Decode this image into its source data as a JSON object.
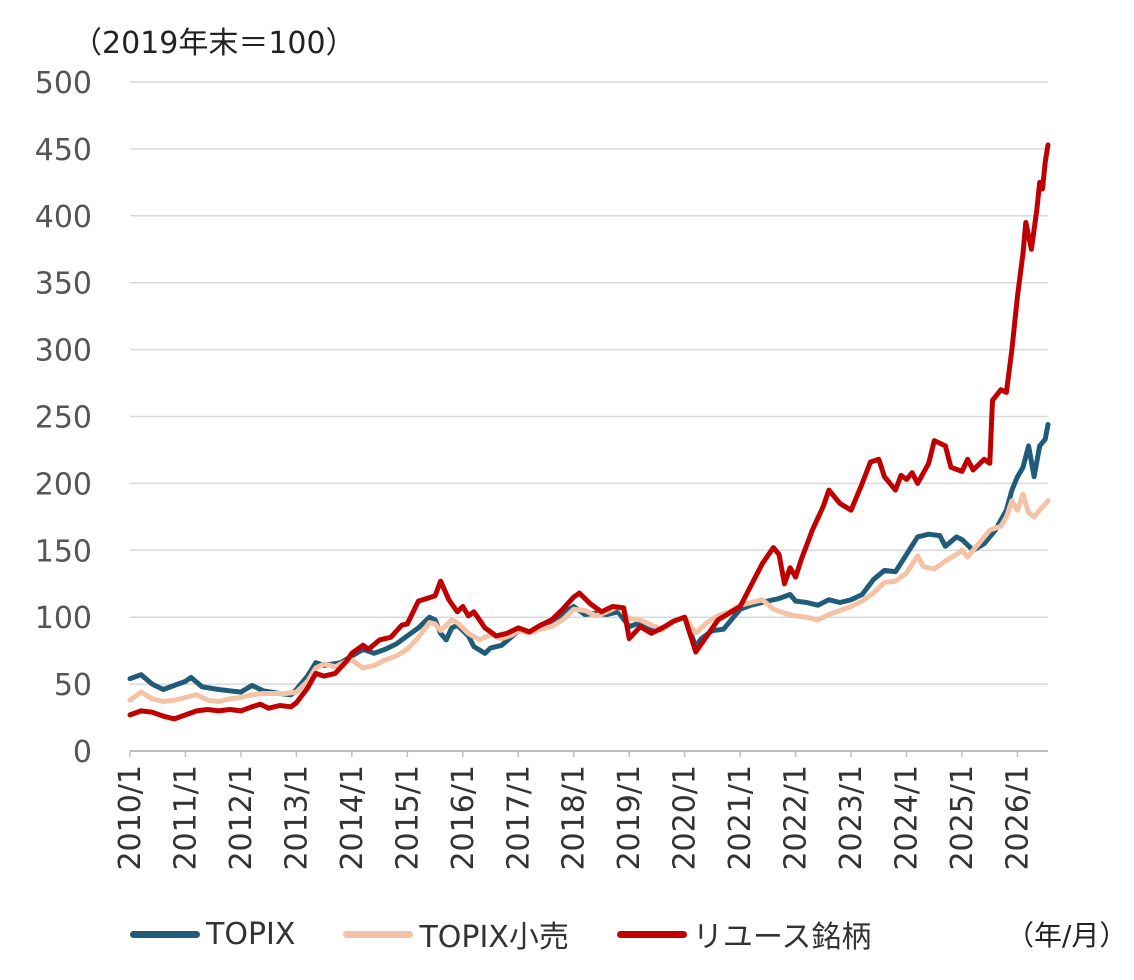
{
  "chart_data": {
    "type": "line",
    "title": "",
    "unit_label": "（2019年末＝100）",
    "xlabel": "",
    "ylabel": "",
    "x_unit": "（年/月）",
    "ylim": [
      0,
      500
    ],
    "yticks": [
      0,
      50,
      100,
      150,
      200,
      250,
      300,
      350,
      400,
      450,
      500
    ],
    "x_tick_labels": [
      "2010/1",
      "2011/1",
      "2012/1",
      "2013/1",
      "2014/1",
      "2015/1",
      "2016/1",
      "2017/1",
      "2018/1",
      "2019/1",
      "2020/1",
      "2021/1",
      "2022/1",
      "2023/1",
      "2024/1",
      "2025/1",
      "2026/1"
    ],
    "x_range": [
      2010.0,
      2026.55
    ],
    "grid": true,
    "legend_position": "bottom",
    "series": [
      {
        "name": "TOPIX",
        "color": "#1F5C7A",
        "points": [
          [
            2010.0,
            54
          ],
          [
            2010.2,
            57
          ],
          [
            2010.4,
            50
          ],
          [
            2010.6,
            46
          ],
          [
            2010.8,
            49
          ],
          [
            2011.0,
            52
          ],
          [
            2011.1,
            55
          ],
          [
            2011.3,
            48
          ],
          [
            2011.6,
            46
          ],
          [
            2011.8,
            45
          ],
          [
            2012.0,
            44
          ],
          [
            2012.2,
            49
          ],
          [
            2012.4,
            45
          ],
          [
            2012.7,
            43
          ],
          [
            2012.9,
            42
          ],
          [
            2013.0,
            46
          ],
          [
            2013.2,
            56
          ],
          [
            2013.35,
            66
          ],
          [
            2013.5,
            64
          ],
          [
            2013.8,
            66
          ],
          [
            2014.0,
            71
          ],
          [
            2014.2,
            76
          ],
          [
            2014.4,
            73
          ],
          [
            2014.6,
            76
          ],
          [
            2014.8,
            80
          ],
          [
            2015.0,
            86
          ],
          [
            2015.2,
            92
          ],
          [
            2015.4,
            100
          ],
          [
            2015.5,
            98
          ],
          [
            2015.6,
            88
          ],
          [
            2015.7,
            83
          ],
          [
            2015.8,
            92
          ],
          [
            2015.9,
            94
          ],
          [
            2016.1,
            86
          ],
          [
            2016.2,
            78
          ],
          [
            2016.4,
            73
          ],
          [
            2016.5,
            77
          ],
          [
            2016.7,
            79
          ],
          [
            2016.9,
            86
          ],
          [
            2017.0,
            90
          ],
          [
            2017.2,
            89
          ],
          [
            2017.4,
            93
          ],
          [
            2017.6,
            94
          ],
          [
            2017.8,
            103
          ],
          [
            2018.0,
            108
          ],
          [
            2018.2,
            102
          ],
          [
            2018.4,
            103
          ],
          [
            2018.6,
            102
          ],
          [
            2018.8,
            104
          ],
          [
            2019.0,
            93
          ],
          [
            2019.2,
            96
          ],
          [
            2019.4,
            90
          ],
          [
            2019.6,
            91
          ],
          [
            2019.8,
            97
          ],
          [
            2020.0,
            100
          ],
          [
            2020.2,
            78
          ],
          [
            2020.3,
            84
          ],
          [
            2020.5,
            90
          ],
          [
            2020.7,
            91
          ],
          [
            2020.9,
            101
          ],
          [
            2021.0,
            106
          ],
          [
            2021.2,
            109
          ],
          [
            2021.5,
            112
          ],
          [
            2021.7,
            114
          ],
          [
            2021.9,
            117
          ],
          [
            2022.0,
            112
          ],
          [
            2022.2,
            111
          ],
          [
            2022.4,
            109
          ],
          [
            2022.6,
            113
          ],
          [
            2022.8,
            111
          ],
          [
            2023.0,
            113
          ],
          [
            2023.2,
            117
          ],
          [
            2023.4,
            128
          ],
          [
            2023.6,
            135
          ],
          [
            2023.8,
            134
          ],
          [
            2024.0,
            147
          ],
          [
            2024.2,
            160
          ],
          [
            2024.4,
            162
          ],
          [
            2024.6,
            161
          ],
          [
            2024.7,
            153
          ],
          [
            2024.9,
            160
          ],
          [
            2025.0,
            158
          ],
          [
            2025.2,
            150
          ],
          [
            2025.4,
            155
          ],
          [
            2025.6,
            165
          ],
          [
            2025.8,
            180
          ],
          [
            2025.9,
            195
          ],
          [
            2026.0,
            205
          ],
          [
            2026.1,
            212
          ],
          [
            2026.2,
            228
          ],
          [
            2026.3,
            205
          ],
          [
            2026.4,
            228
          ],
          [
            2026.5,
            233
          ],
          [
            2026.55,
            244
          ]
        ]
      },
      {
        "name": "TOPIX小売",
        "color": "#F4C3A6",
        "points": [
          [
            2010.0,
            38
          ],
          [
            2010.2,
            44
          ],
          [
            2010.4,
            39
          ],
          [
            2010.6,
            37
          ],
          [
            2010.8,
            38
          ],
          [
            2011.0,
            40
          ],
          [
            2011.2,
            42
          ],
          [
            2011.4,
            38
          ],
          [
            2011.6,
            37
          ],
          [
            2011.8,
            39
          ],
          [
            2012.0,
            40
          ],
          [
            2012.2,
            42
          ],
          [
            2012.4,
            43
          ],
          [
            2012.6,
            43
          ],
          [
            2012.8,
            43
          ],
          [
            2013.0,
            44
          ],
          [
            2013.2,
            52
          ],
          [
            2013.35,
            62
          ],
          [
            2013.5,
            65
          ],
          [
            2013.7,
            63
          ],
          [
            2013.9,
            67
          ],
          [
            2014.0,
            68
          ],
          [
            2014.2,
            62
          ],
          [
            2014.4,
            64
          ],
          [
            2014.6,
            68
          ],
          [
            2014.8,
            71
          ],
          [
            2015.0,
            76
          ],
          [
            2015.2,
            85
          ],
          [
            2015.4,
            96
          ],
          [
            2015.5,
            95
          ],
          [
            2015.6,
            90
          ],
          [
            2015.8,
            98
          ],
          [
            2015.9,
            96
          ],
          [
            2016.1,
            88
          ],
          [
            2016.3,
            83
          ],
          [
            2016.5,
            87
          ],
          [
            2016.7,
            84
          ],
          [
            2016.9,
            87
          ],
          [
            2017.0,
            90
          ],
          [
            2017.2,
            88
          ],
          [
            2017.4,
            91
          ],
          [
            2017.6,
            93
          ],
          [
            2017.8,
            98
          ],
          [
            2018.0,
            106
          ],
          [
            2018.2,
            105
          ],
          [
            2018.4,
            101
          ],
          [
            2018.6,
            104
          ],
          [
            2018.8,
            108
          ],
          [
            2019.0,
            99
          ],
          [
            2019.2,
            98
          ],
          [
            2019.4,
            94
          ],
          [
            2019.6,
            91
          ],
          [
            2019.8,
            97
          ],
          [
            2020.0,
            100
          ],
          [
            2020.2,
            88
          ],
          [
            2020.4,
            96
          ],
          [
            2020.6,
            101
          ],
          [
            2020.8,
            104
          ],
          [
            2021.0,
            109
          ],
          [
            2021.2,
            111
          ],
          [
            2021.4,
            113
          ],
          [
            2021.6,
            106
          ],
          [
            2021.8,
            103
          ],
          [
            2022.0,
            101
          ],
          [
            2022.2,
            100
          ],
          [
            2022.4,
            98
          ],
          [
            2022.6,
            102
          ],
          [
            2022.8,
            105
          ],
          [
            2023.0,
            108
          ],
          [
            2023.2,
            112
          ],
          [
            2023.4,
            118
          ],
          [
            2023.6,
            126
          ],
          [
            2023.8,
            127
          ],
          [
            2024.0,
            133
          ],
          [
            2024.2,
            146
          ],
          [
            2024.3,
            138
          ],
          [
            2024.5,
            136
          ],
          [
            2024.7,
            142
          ],
          [
            2024.9,
            147
          ],
          [
            2025.0,
            150
          ],
          [
            2025.1,
            145
          ],
          [
            2025.3,
            155
          ],
          [
            2025.5,
            165
          ],
          [
            2025.7,
            168
          ],
          [
            2025.8,
            175
          ],
          [
            2025.9,
            187
          ],
          [
            2026.0,
            180
          ],
          [
            2026.1,
            192
          ],
          [
            2026.2,
            178
          ],
          [
            2026.3,
            175
          ],
          [
            2026.4,
            180
          ],
          [
            2026.55,
            187
          ]
        ]
      },
      {
        "name": "リユース銘柄",
        "color": "#C00000",
        "points": [
          [
            2010.0,
            27
          ],
          [
            2010.2,
            30
          ],
          [
            2010.4,
            29
          ],
          [
            2010.6,
            26
          ],
          [
            2010.8,
            24
          ],
          [
            2011.0,
            27
          ],
          [
            2011.2,
            30
          ],
          [
            2011.4,
            31
          ],
          [
            2011.6,
            30
          ],
          [
            2011.8,
            31
          ],
          [
            2012.0,
            30
          ],
          [
            2012.2,
            33
          ],
          [
            2012.35,
            35
          ],
          [
            2012.5,
            32
          ],
          [
            2012.7,
            34
          ],
          [
            2012.9,
            33
          ],
          [
            2013.0,
            36
          ],
          [
            2013.2,
            47
          ],
          [
            2013.35,
            58
          ],
          [
            2013.5,
            56
          ],
          [
            2013.7,
            58
          ],
          [
            2013.9,
            67
          ],
          [
            2014.0,
            73
          ],
          [
            2014.2,
            79
          ],
          [
            2014.3,
            76
          ],
          [
            2014.5,
            83
          ],
          [
            2014.7,
            85
          ],
          [
            2014.9,
            94
          ],
          [
            2015.0,
            95
          ],
          [
            2015.2,
            112
          ],
          [
            2015.35,
            114
          ],
          [
            2015.5,
            116
          ],
          [
            2015.6,
            127
          ],
          [
            2015.75,
            113
          ],
          [
            2015.9,
            104
          ],
          [
            2016.0,
            108
          ],
          [
            2016.1,
            101
          ],
          [
            2016.2,
            104
          ],
          [
            2016.4,
            92
          ],
          [
            2016.6,
            86
          ],
          [
            2016.8,
            88
          ],
          [
            2017.0,
            92
          ],
          [
            2017.2,
            89
          ],
          [
            2017.4,
            94
          ],
          [
            2017.6,
            98
          ],
          [
            2017.8,
            106
          ],
          [
            2018.0,
            115
          ],
          [
            2018.1,
            118
          ],
          [
            2018.3,
            110
          ],
          [
            2018.5,
            104
          ],
          [
            2018.7,
            108
          ],
          [
            2018.9,
            107
          ],
          [
            2019.0,
            84
          ],
          [
            2019.2,
            93
          ],
          [
            2019.4,
            88
          ],
          [
            2019.6,
            92
          ],
          [
            2019.8,
            97
          ],
          [
            2020.0,
            100
          ],
          [
            2020.2,
            74
          ],
          [
            2020.4,
            86
          ],
          [
            2020.6,
            98
          ],
          [
            2020.8,
            103
          ],
          [
            2021.0,
            108
          ],
          [
            2021.2,
            124
          ],
          [
            2021.4,
            140
          ],
          [
            2021.6,
            152
          ],
          [
            2021.7,
            147
          ],
          [
            2021.8,
            125
          ],
          [
            2021.9,
            137
          ],
          [
            2022.0,
            130
          ],
          [
            2022.1,
            143
          ],
          [
            2022.3,
            165
          ],
          [
            2022.5,
            183
          ],
          [
            2022.6,
            195
          ],
          [
            2022.8,
            185
          ],
          [
            2023.0,
            180
          ],
          [
            2023.2,
            200
          ],
          [
            2023.35,
            216
          ],
          [
            2023.5,
            218
          ],
          [
            2023.6,
            205
          ],
          [
            2023.8,
            195
          ],
          [
            2023.9,
            206
          ],
          [
            2024.0,
            203
          ],
          [
            2024.1,
            208
          ],
          [
            2024.2,
            200
          ],
          [
            2024.4,
            215
          ],
          [
            2024.5,
            232
          ],
          [
            2024.7,
            228
          ],
          [
            2024.8,
            212
          ],
          [
            2025.0,
            209
          ],
          [
            2025.1,
            218
          ],
          [
            2025.2,
            210
          ],
          [
            2025.4,
            218
          ],
          [
            2025.5,
            215
          ],
          [
            2025.55,
            262
          ],
          [
            2025.7,
            270
          ],
          [
            2025.8,
            268
          ],
          [
            2025.9,
            300
          ],
          [
            2026.0,
            340
          ],
          [
            2026.1,
            372
          ],
          [
            2026.15,
            395
          ],
          [
            2026.25,
            375
          ],
          [
            2026.35,
            405
          ],
          [
            2026.4,
            425
          ],
          [
            2026.45,
            420
          ],
          [
            2026.5,
            440
          ],
          [
            2026.55,
            453
          ]
        ]
      }
    ]
  }
}
